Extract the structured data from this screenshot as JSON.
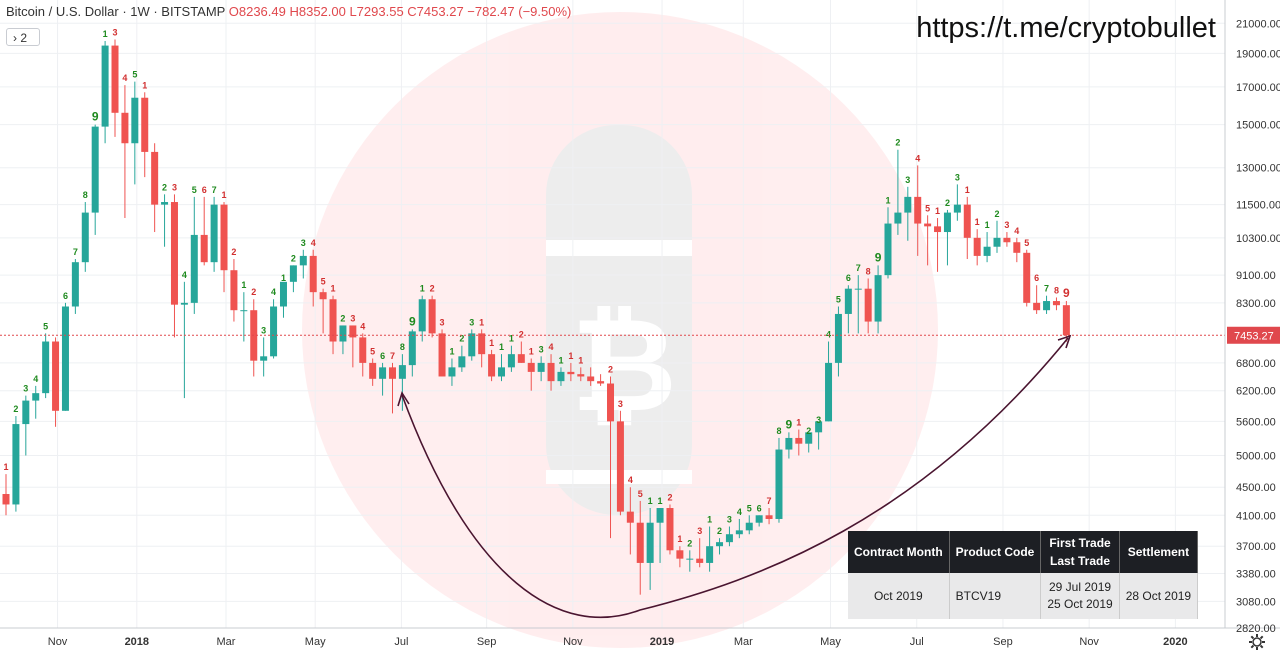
{
  "header": {
    "symbol": "Bitcoin / U.S. Dollar · 1W · BITSTAMP",
    "ohlc": "O8236.49 H8352.00 L7293.55 C7453.27 −782.47 (−9.50%)",
    "indicator_count": "2",
    "watermark_link": "https://t.me/cryptobullet"
  },
  "colors": {
    "up": "#26a69a",
    "down": "#ef5350",
    "arc": "#4a1530",
    "price_line": "#e0484d"
  },
  "chart_data": {
    "type": "candlestick",
    "y_scale": "log",
    "y_ticks": [
      "21000.00",
      "19000.00",
      "17000.00",
      "15000.00",
      "13000.00",
      "11500.00",
      "10300.00",
      "9100.00",
      "8300.00",
      "6800.00",
      "6200.00",
      "5600.00",
      "5000.00",
      "4500.00",
      "4100.00",
      "3700.00",
      "3380.00",
      "3080.00",
      "2820.00"
    ],
    "x_ticks": [
      "Nov",
      "2018",
      "Mar",
      "May",
      "Jul",
      "Sep",
      "Nov",
      "2019",
      "Mar",
      "May",
      "Jul",
      "Sep",
      "Nov",
      "2020"
    ],
    "last_price": "7453.27",
    "ylim": [
      2820,
      21800
    ],
    "candles": [
      [
        4400,
        4700,
        4100,
        4250
      ],
      [
        4250,
        5700,
        4150,
        5550
      ],
      [
        5550,
        6100,
        5000,
        6000
      ],
      [
        6000,
        6300,
        5650,
        6150
      ],
      [
        6150,
        7500,
        6050,
        7300
      ],
      [
        7300,
        7400,
        5500,
        5800
      ],
      [
        5800,
        8300,
        5800,
        8200
      ],
      [
        8200,
        9600,
        8000,
        9500
      ],
      [
        9500,
        11600,
        9200,
        11200
      ],
      [
        11200,
        15000,
        10400,
        14900
      ],
      [
        14900,
        19800,
        14100,
        19500
      ],
      [
        19500,
        19900,
        14400,
        15600
      ],
      [
        15600,
        17100,
        11000,
        14100
      ],
      [
        14100,
        17300,
        12300,
        16400
      ],
      [
        16400,
        16700,
        12600,
        13700
      ],
      [
        13700,
        14100,
        10500,
        11500
      ],
      [
        11500,
        11900,
        10000,
        11600
      ],
      [
        11600,
        11900,
        7400,
        8250
      ],
      [
        8250,
        8900,
        6050,
        8300
      ],
      [
        8300,
        11800,
        8000,
        10400
      ],
      [
        10400,
        11800,
        9400,
        9500
      ],
      [
        9500,
        11800,
        9200,
        11500
      ],
      [
        11500,
        11600,
        8600,
        9250
      ],
      [
        9250,
        9600,
        7800,
        8100
      ],
      [
        8100,
        8600,
        7300,
        8100
      ],
      [
        8100,
        8400,
        6500,
        6850
      ],
      [
        6850,
        7400,
        6500,
        6950
      ],
      [
        6950,
        8400,
        6900,
        8200
      ],
      [
        8200,
        8800,
        7900,
        8900
      ],
      [
        8900,
        9400,
        8600,
        9400
      ],
      [
        9400,
        9900,
        9000,
        9700
      ],
      [
        9700,
        9900,
        8200,
        8600
      ],
      [
        8600,
        8700,
        7500,
        8400
      ],
      [
        8400,
        8500,
        7000,
        7300
      ],
      [
        7300,
        7700,
        7000,
        7700
      ],
      [
        7700,
        7700,
        6700,
        7400
      ],
      [
        7400,
        7500,
        6500,
        6800
      ],
      [
        6800,
        6900,
        6300,
        6450
      ],
      [
        6450,
        6800,
        6100,
        6700
      ],
      [
        6700,
        6800,
        5750,
        6450
      ],
      [
        6450,
        7000,
        5800,
        6750
      ],
      [
        6750,
        7600,
        6500,
        7550
      ],
      [
        7550,
        8500,
        7300,
        8400
      ],
      [
        8400,
        8500,
        7400,
        7500
      ],
      [
        7500,
        7600,
        6500,
        6500
      ],
      [
        6500,
        6900,
        6300,
        6700
      ],
      [
        6700,
        7200,
        6600,
        6950
      ],
      [
        6950,
        7600,
        6850,
        7500
      ],
      [
        7500,
        7600,
        6700,
        7000
      ],
      [
        7000,
        7100,
        6400,
        6500
      ],
      [
        6500,
        7000,
        6400,
        6700
      ],
      [
        6700,
        7200,
        6600,
        7000
      ],
      [
        7000,
        7300,
        6800,
        6800
      ],
      [
        6800,
        6900,
        6200,
        6600
      ],
      [
        6600,
        6950,
        6400,
        6800
      ],
      [
        6800,
        7000,
        6200,
        6400
      ],
      [
        6400,
        6700,
        6300,
        6600
      ],
      [
        6600,
        6800,
        6400,
        6550
      ],
      [
        6550,
        6700,
        6400,
        6500
      ],
      [
        6500,
        6700,
        6300,
        6400
      ],
      [
        6400,
        6550,
        6300,
        6350
      ],
      [
        6350,
        6500,
        3800,
        5600
      ],
      [
        5600,
        5800,
        4100,
        4150
      ],
      [
        4150,
        4500,
        3600,
        4000
      ],
      [
        4000,
        4300,
        3150,
        3500
      ],
      [
        3500,
        4200,
        3200,
        4000
      ],
      [
        4000,
        4200,
        3500,
        4200
      ],
      [
        4200,
        4250,
        3600,
        3650
      ],
      [
        3650,
        3700,
        3450,
        3550
      ],
      [
        3550,
        3650,
        3400,
        3550
      ],
      [
        3550,
        3800,
        3450,
        3500
      ],
      [
        3500,
        3950,
        3400,
        3700
      ],
      [
        3700,
        3800,
        3600,
        3750
      ],
      [
        3750,
        3950,
        3700,
        3850
      ],
      [
        3850,
        4050,
        3800,
        3900
      ],
      [
        3900,
        4100,
        3850,
        4000
      ],
      [
        4000,
        4100,
        3950,
        4100
      ],
      [
        4100,
        4200,
        3980,
        4050
      ],
      [
        4050,
        5300,
        4000,
        5100
      ],
      [
        5100,
        5400,
        4950,
        5300
      ],
      [
        5300,
        5450,
        5000,
        5200
      ],
      [
        5200,
        5300,
        5050,
        5400
      ],
      [
        5400,
        5500,
        5100,
        5600
      ],
      [
        5600,
        7300,
        5600,
        6800
      ],
      [
        6800,
        8200,
        6500,
        8000
      ],
      [
        8000,
        8800,
        7500,
        8700
      ],
      [
        8700,
        9100,
        7500,
        8700
      ],
      [
        8700,
        9000,
        7500,
        7800
      ],
      [
        7800,
        9400,
        7500,
        9100
      ],
      [
        9100,
        11400,
        9000,
        10800
      ],
      [
        10800,
        13800,
        10400,
        11200
      ],
      [
        11200,
        12200,
        10200,
        11800
      ],
      [
        11800,
        13100,
        9700,
        10800
      ],
      [
        10800,
        11100,
        9400,
        10700
      ],
      [
        10700,
        11000,
        9200,
        10500
      ],
      [
        10500,
        11300,
        9400,
        11200
      ],
      [
        11200,
        12300,
        10900,
        11500
      ],
      [
        11500,
        11800,
        9600,
        10300
      ],
      [
        10300,
        10600,
        9400,
        9700
      ],
      [
        9700,
        10500,
        9500,
        10000
      ],
      [
        10000,
        10900,
        9800,
        10300
      ],
      [
        10300,
        10500,
        10000,
        10150
      ],
      [
        10150,
        10300,
        9500,
        9800
      ],
      [
        9800,
        9900,
        8200,
        8300
      ],
      [
        8300,
        8800,
        8000,
        8100
      ],
      [
        8100,
        8500,
        8000,
        8350
      ],
      [
        8350,
        8450,
        8100,
        8236
      ],
      [
        8236,
        8352,
        7293,
        7453
      ]
    ],
    "counts": [
      {
        "i": 0,
        "t": "1"
      },
      {
        "i": 1,
        "t": "2"
      },
      {
        "i": 2,
        "t": "3"
      },
      {
        "i": 3,
        "t": "4"
      },
      {
        "i": 4,
        "t": "5"
      },
      {
        "i": 6,
        "t": "6"
      },
      {
        "i": 7,
        "t": "7"
      },
      {
        "i": 8,
        "t": "8"
      },
      {
        "i": 9,
        "t": "9"
      },
      {
        "i": 10,
        "t": "1"
      },
      {
        "i": 11,
        "t": "3"
      },
      {
        "i": 12,
        "t": "4"
      },
      {
        "i": 13,
        "t": "5"
      },
      {
        "i": 14,
        "t": "1"
      },
      {
        "i": 16,
        "t": "2"
      },
      {
        "i": 17,
        "t": "3"
      },
      {
        "i": 18,
        "t": "4"
      },
      {
        "i": 19,
        "t": "5"
      },
      {
        "i": 20,
        "t": "6"
      },
      {
        "i": 21,
        "t": "7"
      },
      {
        "i": 22,
        "t": "1"
      },
      {
        "i": 23,
        "t": "2"
      },
      {
        "i": 24,
        "t": "1"
      },
      {
        "i": 25,
        "t": "2"
      },
      {
        "i": 26,
        "t": "3"
      },
      {
        "i": 27,
        "t": "4"
      },
      {
        "i": 28,
        "t": "1"
      },
      {
        "i": 29,
        "t": "2"
      },
      {
        "i": 30,
        "t": "3"
      },
      {
        "i": 31,
        "t": "4"
      },
      {
        "i": 32,
        "t": "5"
      },
      {
        "i": 33,
        "t": "1"
      },
      {
        "i": 34,
        "t": "2"
      },
      {
        "i": 35,
        "t": "3"
      },
      {
        "i": 36,
        "t": "4"
      },
      {
        "i": 37,
        "t": "5"
      },
      {
        "i": 38,
        "t": "6"
      },
      {
        "i": 39,
        "t": "7"
      },
      {
        "i": 40,
        "t": "8"
      },
      {
        "i": 41,
        "t": "9"
      },
      {
        "i": 42,
        "t": "1"
      },
      {
        "i": 43,
        "t": "2"
      },
      {
        "i": 44,
        "t": "3"
      },
      {
        "i": 45,
        "t": "1"
      },
      {
        "i": 46,
        "t": "2"
      },
      {
        "i": 47,
        "t": "3"
      },
      {
        "i": 48,
        "t": "1"
      },
      {
        "i": 49,
        "t": "1"
      },
      {
        "i": 50,
        "t": "1"
      },
      {
        "i": 51,
        "t": "1"
      },
      {
        "i": 52,
        "t": "2"
      },
      {
        "i": 53,
        "t": "1"
      },
      {
        "i": 54,
        "t": "3"
      },
      {
        "i": 55,
        "t": "4"
      },
      {
        "i": 56,
        "t": "1"
      },
      {
        "i": 57,
        "t": "1"
      },
      {
        "i": 58,
        "t": "1"
      },
      {
        "i": 61,
        "t": "2"
      },
      {
        "i": 62,
        "t": "3"
      },
      {
        "i": 63,
        "t": "4"
      },
      {
        "i": 64,
        "t": "5"
      },
      {
        "i": 65,
        "t": "1"
      },
      {
        "i": 66,
        "t": "1"
      },
      {
        "i": 67,
        "t": "2"
      },
      {
        "i": 68,
        "t": "1"
      },
      {
        "i": 69,
        "t": "2"
      },
      {
        "i": 70,
        "t": "3"
      },
      {
        "i": 71,
        "t": "1"
      },
      {
        "i": 72,
        "t": "2"
      },
      {
        "i": 73,
        "t": "3"
      },
      {
        "i": 74,
        "t": "4"
      },
      {
        "i": 75,
        "t": "5"
      },
      {
        "i": 76,
        "t": "6"
      },
      {
        "i": 77,
        "t": "7"
      },
      {
        "i": 78,
        "t": "8"
      },
      {
        "i": 79,
        "t": "9"
      },
      {
        "i": 80,
        "t": "1"
      },
      {
        "i": 81,
        "t": "2"
      },
      {
        "i": 82,
        "t": "3"
      },
      {
        "i": 83,
        "t": "4"
      },
      {
        "i": 84,
        "t": "5"
      },
      {
        "i": 85,
        "t": "6"
      },
      {
        "i": 86,
        "t": "7"
      },
      {
        "i": 87,
        "t": "8"
      },
      {
        "i": 88,
        "t": "9"
      },
      {
        "i": 89,
        "t": "1"
      },
      {
        "i": 90,
        "t": "2"
      },
      {
        "i": 91,
        "t": "3"
      },
      {
        "i": 92,
        "t": "4"
      },
      {
        "i": 93,
        "t": "5"
      },
      {
        "i": 94,
        "t": "1"
      },
      {
        "i": 95,
        "t": "2"
      },
      {
        "i": 96,
        "t": "3"
      },
      {
        "i": 97,
        "t": "1"
      },
      {
        "i": 98,
        "t": "1"
      },
      {
        "i": 99,
        "t": "1"
      },
      {
        "i": 100,
        "t": "2"
      },
      {
        "i": 101,
        "t": "3"
      },
      {
        "i": 102,
        "t": "4"
      },
      {
        "i": 103,
        "t": "5"
      },
      {
        "i": 104,
        "t": "6"
      },
      {
        "i": 105,
        "t": "7"
      },
      {
        "i": 106,
        "t": "8"
      },
      {
        "i": 107,
        "t": "9"
      }
    ]
  },
  "table": {
    "headers": [
      "Contract Month",
      "Product Code",
      "First Trade\nLast Trade",
      "Settlement"
    ],
    "row": {
      "month": "Oct 2019",
      "code": "BTCV19",
      "first_trade": "29 Jul 2019",
      "last_trade": "25 Oct 2019",
      "settlement": "28 Oct 2019"
    }
  }
}
